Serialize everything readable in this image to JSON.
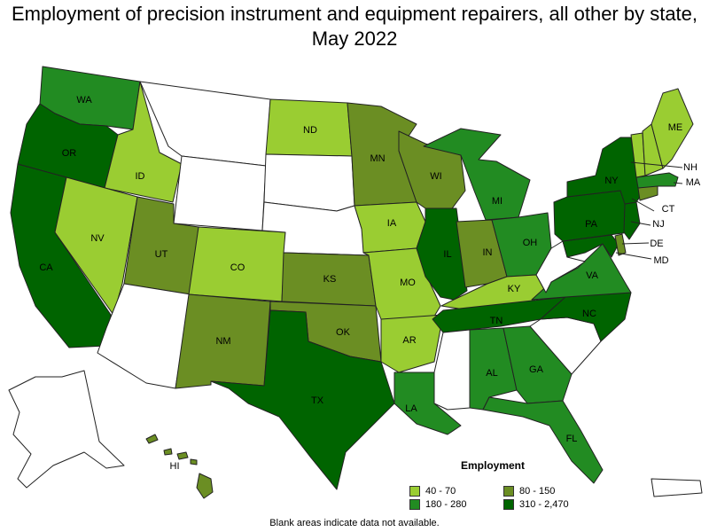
{
  "title": "Employment of precision instrument and equipment repairers, all other by state, May 2022",
  "legend": {
    "title": "Employment",
    "classes": [
      {
        "label": "40 - 70",
        "color": "#9acd32"
      },
      {
        "label": "80 - 150",
        "color": "#6b8e23"
      },
      {
        "label": "180 - 280",
        "color": "#228b22"
      },
      {
        "label": "310 - 2,470",
        "color": "#006400"
      }
    ]
  },
  "note": "Blank areas indicate data not available.",
  "colors": {
    "blank": "#ffffff",
    "border": "#222222"
  },
  "states": {
    "WA": {
      "label": "WA",
      "class": "180 - 280"
    },
    "OR": {
      "label": "OR",
      "class": "310 - 2,470"
    },
    "CA": {
      "label": "CA",
      "class": "310 - 2,470"
    },
    "ID": {
      "label": "ID",
      "class": "40 - 70"
    },
    "NV": {
      "label": "NV",
      "class": "40 - 70"
    },
    "UT": {
      "label": "UT",
      "class": "80 - 150"
    },
    "CO": {
      "label": "CO",
      "class": "40 - 70"
    },
    "NM": {
      "label": "NM",
      "class": "80 - 150"
    },
    "TX": {
      "label": "TX",
      "class": "310 - 2,470"
    },
    "ND": {
      "label": "ND",
      "class": "40 - 70"
    },
    "KS": {
      "label": "KS",
      "class": "80 - 150"
    },
    "OK": {
      "label": "OK",
      "class": "80 - 150"
    },
    "MN": {
      "label": "MN",
      "class": "80 - 150"
    },
    "IA": {
      "label": "IA",
      "class": "40 - 70"
    },
    "MO": {
      "label": "MO",
      "class": "40 - 70"
    },
    "AR": {
      "label": "AR",
      "class": "40 - 70"
    },
    "LA": {
      "label": "LA",
      "class": "180 - 280"
    },
    "WI": {
      "label": "WI",
      "class": "80 - 150"
    },
    "IL": {
      "label": "IL",
      "class": "310 - 2,470"
    },
    "MI": {
      "label": "MI",
      "class": "180 - 280"
    },
    "IN": {
      "label": "IN",
      "class": "80 - 150"
    },
    "OH": {
      "label": "OH",
      "class": "180 - 280"
    },
    "KY": {
      "label": "KY",
      "class": "40 - 70"
    },
    "TN": {
      "label": "TN",
      "class": "310 - 2,470"
    },
    "AL": {
      "label": "AL",
      "class": "180 - 280"
    },
    "GA": {
      "label": "GA",
      "class": "180 - 280"
    },
    "FL": {
      "label": "FL",
      "class": "180 - 280"
    },
    "NC": {
      "label": "NC",
      "class": "310 - 2,470"
    },
    "VA": {
      "label": "VA",
      "class": "180 - 280"
    },
    "PA": {
      "label": "PA",
      "class": "310 - 2,470"
    },
    "NY": {
      "label": "NY",
      "class": "310 - 2,470"
    },
    "NJ": {
      "label": "NJ",
      "class": "310 - 2,470"
    },
    "DE": {
      "label": "DE",
      "class": "80 - 150"
    },
    "MD": {
      "label": "MD",
      "class": "310 - 2,470"
    },
    "CT": {
      "label": "CT",
      "class": "80 - 150"
    },
    "MA": {
      "label": "MA",
      "class": "180 - 280"
    },
    "NH": {
      "label": "NH",
      "class": "40 - 70"
    },
    "VT": {
      "label": "",
      "class": "40 - 70"
    },
    "ME": {
      "label": "ME",
      "class": "40 - 70"
    },
    "HI": {
      "label": "HI",
      "class": "80 - 150"
    },
    "MT": {
      "label": "",
      "class": ""
    },
    "WY": {
      "label": "",
      "class": ""
    },
    "SD": {
      "label": "",
      "class": ""
    },
    "NE": {
      "label": "",
      "class": ""
    },
    "AZ": {
      "label": "",
      "class": ""
    },
    "MS": {
      "label": "",
      "class": ""
    },
    "SC": {
      "label": "",
      "class": ""
    },
    "WV": {
      "label": "",
      "class": ""
    },
    "AK": {
      "label": "",
      "class": ""
    },
    "PR": {
      "label": "",
      "class": ""
    }
  }
}
